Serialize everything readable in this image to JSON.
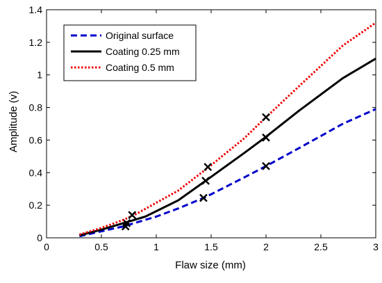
{
  "chart_data": {
    "type": "line",
    "title": "",
    "xlabel": "Flaw size (mm)",
    "ylabel": "Amplitude (v)",
    "xlim": [
      0,
      3
    ],
    "ylim": [
      0,
      1.4
    ],
    "xticks": [
      0,
      0.5,
      1,
      1.5,
      2,
      2.5,
      3
    ],
    "xtick_labels": [
      "0",
      "0.5",
      "1",
      "1.5",
      "2",
      "2.5",
      "3"
    ],
    "yticks": [
      0,
      0.2,
      0.4,
      0.6,
      0.8,
      1.0,
      1.2,
      1.4
    ],
    "ytick_labels": [
      "0",
      "0.2",
      "0.4",
      "0.6",
      "0.8",
      "1",
      "1.2",
      "1.4"
    ],
    "grid": false,
    "legend_position": "top-left",
    "series": [
      {
        "name": "Original surface",
        "color": "#0000cc",
        "line_style": "dashed",
        "x": [
          0.3,
          0.5,
          0.7,
          1.0,
          1.2,
          1.45,
          1.8,
          2.0,
          2.3,
          2.7,
          3.0
        ],
        "y": [
          0.01,
          0.04,
          0.07,
          0.13,
          0.18,
          0.25,
          0.37,
          0.44,
          0.55,
          0.7,
          0.79
        ],
        "markers": [
          {
            "x": 0.72,
            "y": 0.07
          },
          {
            "x": 1.43,
            "y": 0.245
          },
          {
            "x": 2.0,
            "y": 0.44
          }
        ]
      },
      {
        "name": "Coating 0.25 mm",
        "color": "#000000",
        "line_style": "solid",
        "x": [
          0.3,
          0.5,
          0.7,
          0.9,
          1.2,
          1.45,
          1.8,
          2.0,
          2.3,
          2.7,
          3.0
        ],
        "y": [
          0.015,
          0.05,
          0.09,
          0.13,
          0.23,
          0.35,
          0.52,
          0.62,
          0.78,
          0.98,
          1.1
        ],
        "markers": [
          {
            "x": 0.73,
            "y": 0.09
          },
          {
            "x": 1.45,
            "y": 0.35
          },
          {
            "x": 2.0,
            "y": 0.615
          }
        ]
      },
      {
        "name": "Coating 0.5 mm",
        "color": "#ee0000",
        "line_style": "dotted",
        "x": [
          0.3,
          0.5,
          0.7,
          0.8,
          1.2,
          1.47,
          1.8,
          2.0,
          2.3,
          2.7,
          3.0
        ],
        "y": [
          0.02,
          0.06,
          0.11,
          0.14,
          0.29,
          0.43,
          0.61,
          0.74,
          0.93,
          1.18,
          1.32
        ],
        "markers": [
          {
            "x": 0.78,
            "y": 0.14
          },
          {
            "x": 1.47,
            "y": 0.435
          },
          {
            "x": 2.0,
            "y": 0.74
          }
        ]
      }
    ]
  }
}
